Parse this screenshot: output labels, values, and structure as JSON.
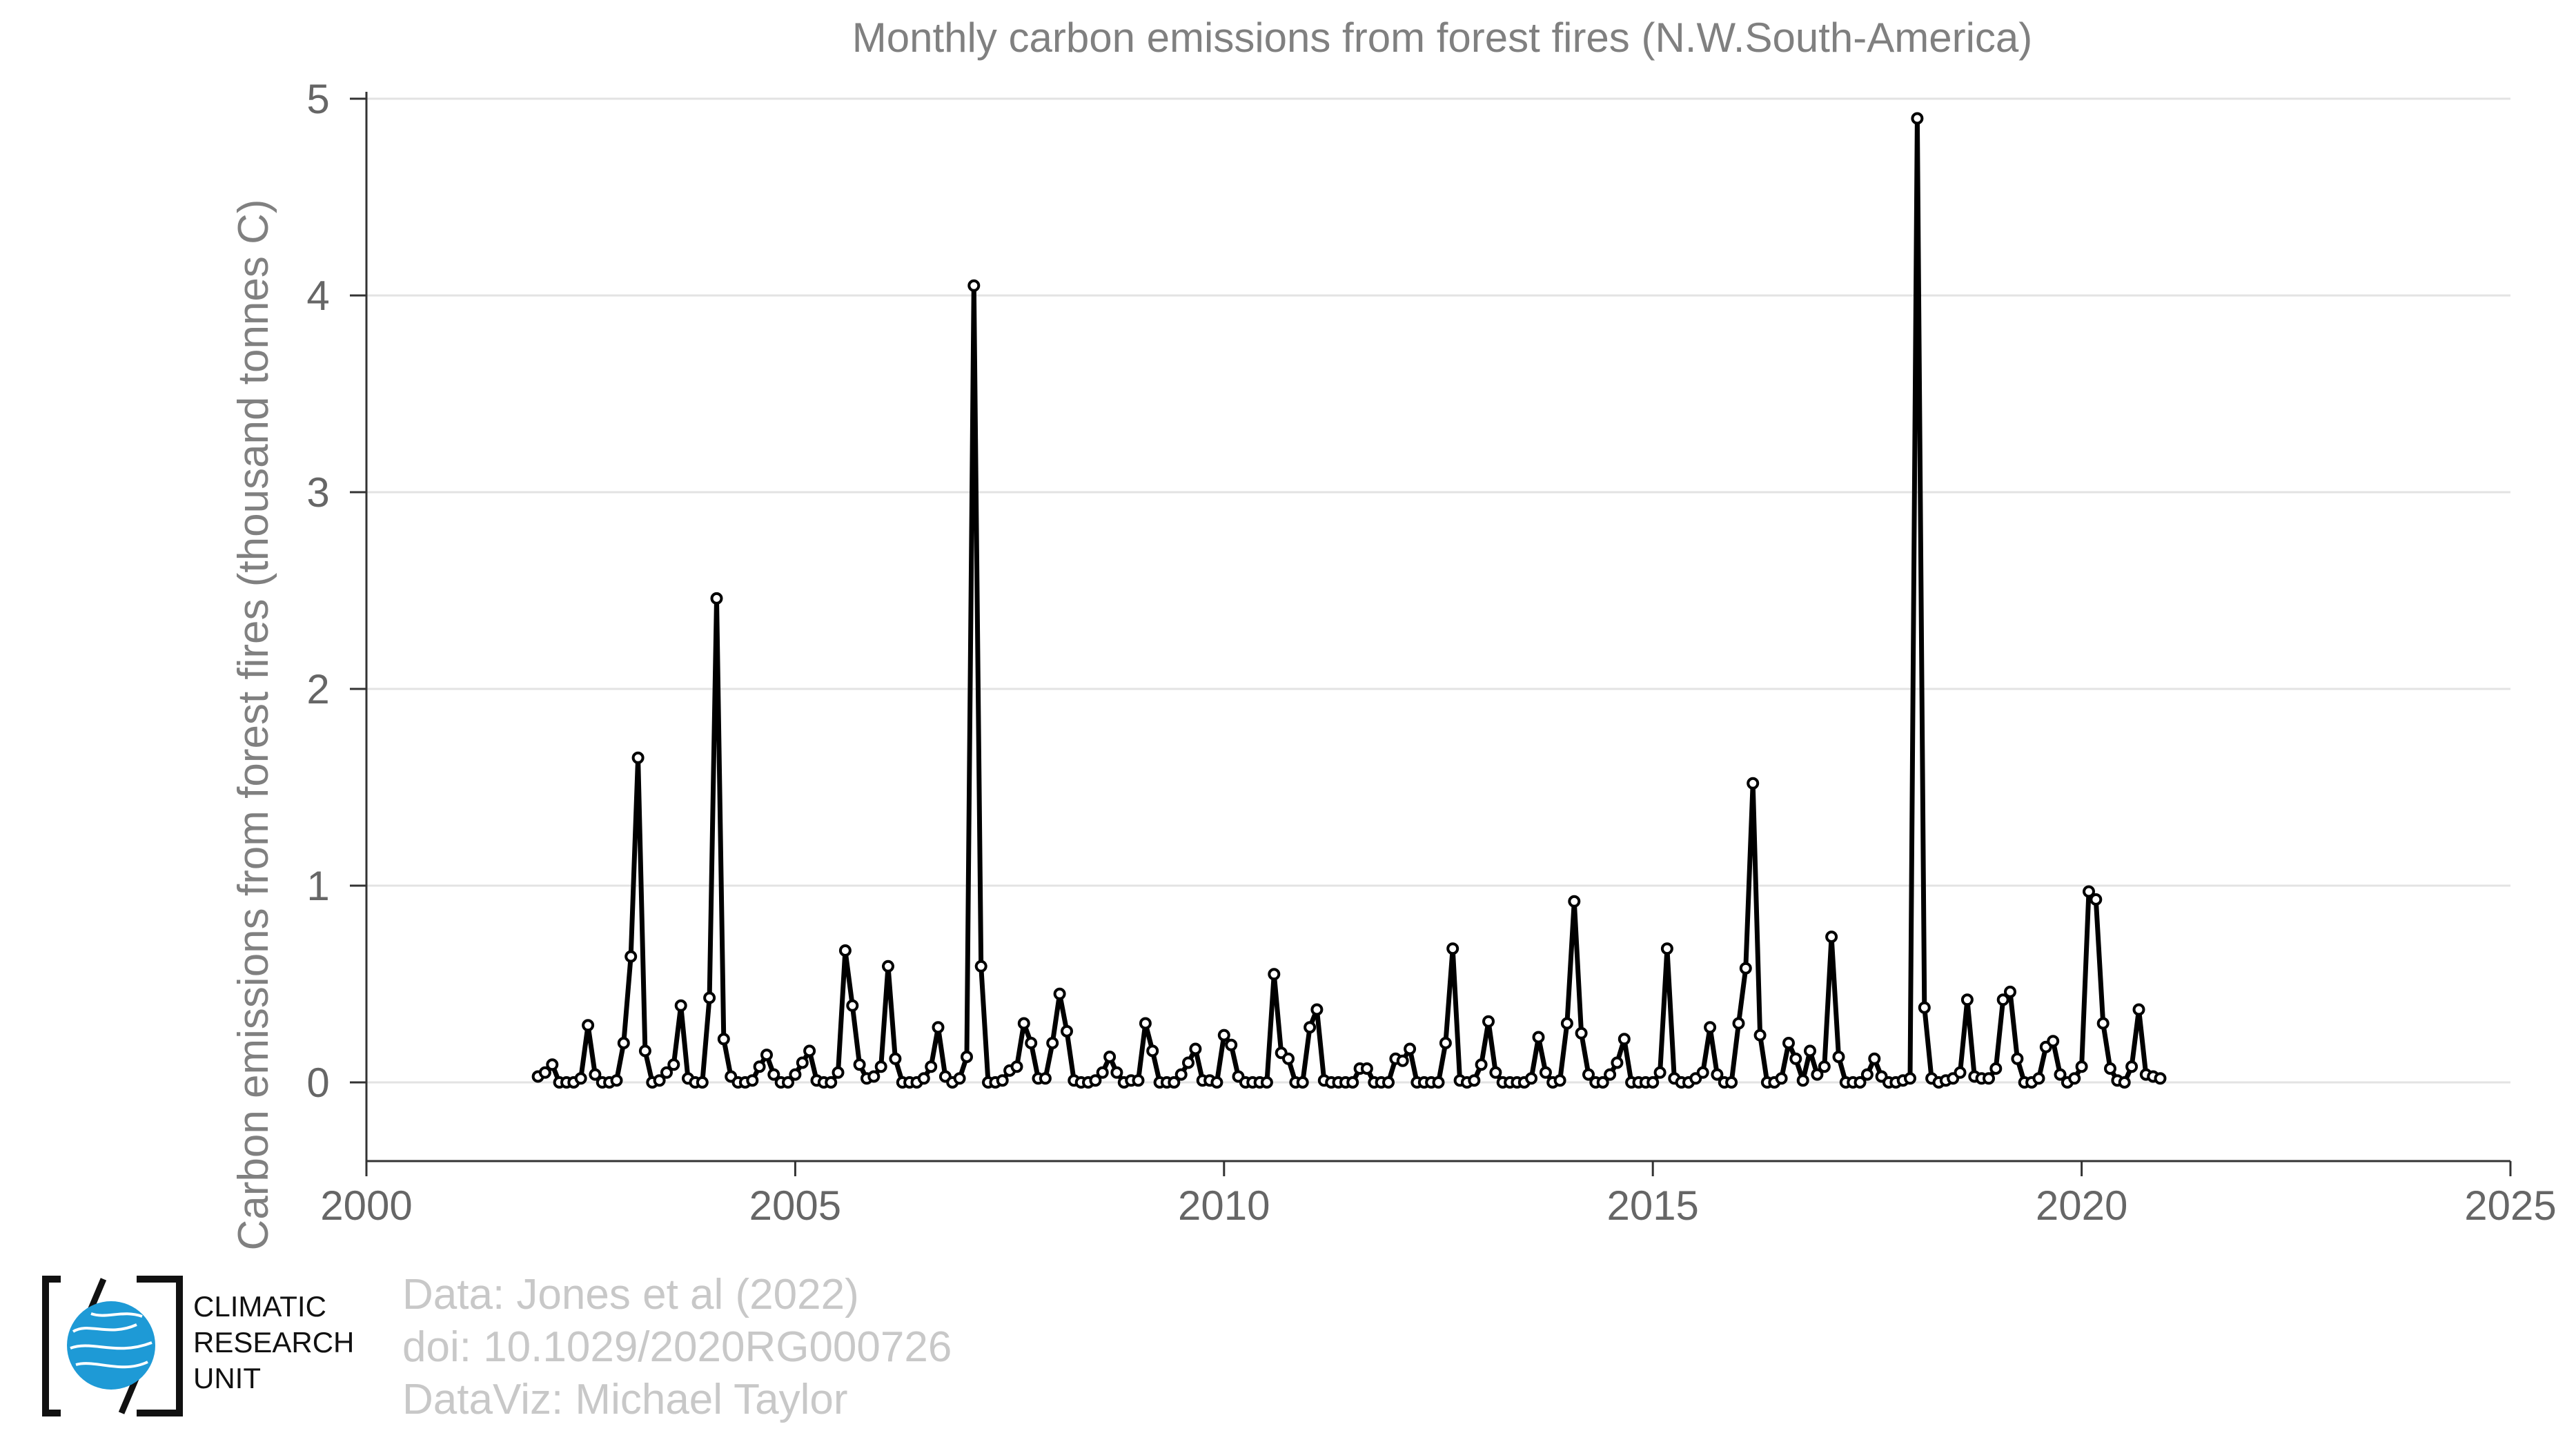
{
  "chart_data": {
    "type": "line",
    "title": "Monthly carbon emissions from forest fires (N.W.South-America)",
    "xlabel": "",
    "ylabel": "Carbon emissions from forest fires (thousand tonnes C)",
    "xlim": [
      2000,
      2025
    ],
    "ylim": [
      -0.4,
      5
    ],
    "xticks": [
      2000,
      2005,
      2010,
      2015,
      2020,
      2025
    ],
    "yticks": [
      0,
      1,
      2,
      3,
      4,
      5
    ],
    "grid": "horizontal",
    "line_color": "#000000",
    "marker": "open-circle",
    "series": [
      {
        "start_year": 2002,
        "values": [
          0.03,
          0.05,
          0.09,
          0.0,
          0.0,
          0.0,
          0.02,
          0.29,
          0.04,
          0.0,
          0.0,
          0.01,
          0.2,
          0.64,
          1.65,
          0.16,
          0.0,
          0.01,
          0.05,
          0.09,
          0.39,
          0.02,
          0.0,
          0.0,
          0.43,
          2.46,
          0.22,
          0.03,
          0.0,
          0.0,
          0.01,
          0.08,
          0.14,
          0.04,
          0.0,
          0.0,
          0.04,
          0.1,
          0.16,
          0.01,
          0.0,
          0.0,
          0.05,
          0.67,
          0.39,
          0.09,
          0.02,
          0.03,
          0.08,
          0.59,
          0.12,
          0.0,
          0.0,
          0.0,
          0.02,
          0.08,
          0.28,
          0.03,
          0.0,
          0.02,
          0.13,
          4.05,
          0.59,
          0.0,
          0.0,
          0.01,
          0.06,
          0.08,
          0.3,
          0.2,
          0.02,
          0.02,
          0.2,
          0.45,
          0.26,
          0.01,
          0.0,
          0.0,
          0.01,
          0.05,
          0.13,
          0.05,
          0.0,
          0.01,
          0.01,
          0.3,
          0.16,
          0.0,
          0.0,
          0.0,
          0.04,
          0.1,
          0.17,
          0.01,
          0.01,
          0.0,
          0.24,
          0.19,
          0.03,
          0.0,
          0.0,
          0.0,
          0.0,
          0.55,
          0.15,
          0.12,
          0.0,
          0.0,
          0.28,
          0.37,
          0.01,
          0.0,
          0.0,
          0.0,
          0.0,
          0.07,
          0.07,
          0.0,
          0.0,
          0.0,
          0.12,
          0.11,
          0.17,
          0.0,
          0.0,
          0.0,
          0.0,
          0.2,
          0.68,
          0.01,
          0.0,
          0.01,
          0.09,
          0.31,
          0.05,
          0.0,
          0.0,
          0.0,
          0.0,
          0.02,
          0.23,
          0.05,
          0.0,
          0.01,
          0.3,
          0.92,
          0.25,
          0.04,
          0.0,
          0.0,
          0.04,
          0.1,
          0.22,
          0.0,
          0.0,
          0.0,
          0.0,
          0.05,
          0.68,
          0.02,
          0.0,
          0.0,
          0.02,
          0.05,
          0.28,
          0.04,
          0.0,
          0.0,
          0.3,
          0.58,
          1.52,
          0.24,
          0.0,
          0.0,
          0.02,
          0.2,
          0.12,
          0.01,
          0.16,
          0.04,
          0.08,
          0.74,
          0.13,
          0.0,
          0.0,
          0.0,
          0.04,
          0.12,
          0.03,
          0.0,
          0.0,
          0.01,
          0.02,
          4.9,
          0.38,
          0.02,
          0.0,
          0.01,
          0.02,
          0.05,
          0.42,
          0.03,
          0.02,
          0.02,
          0.07,
          0.42,
          0.46,
          0.12,
          0.0,
          0.0,
          0.02,
          0.18,
          0.21,
          0.04,
          0.0,
          0.02,
          0.08,
          0.97,
          0.93,
          0.3,
          0.07,
          0.01,
          0.0,
          0.08,
          0.37,
          0.04,
          0.03,
          0.02
        ]
      }
    ]
  },
  "credits": {
    "line1": "Data: Jones et al (2022)",
    "line2": "doi: 10.1029/2020RG000726",
    "line3": "DataViz: Michael Taylor"
  },
  "logo": {
    "line1": "CLIMATIC",
    "line2": "RESEARCH",
    "line3": "UNIT",
    "globe_color": "#1e9ad6"
  }
}
